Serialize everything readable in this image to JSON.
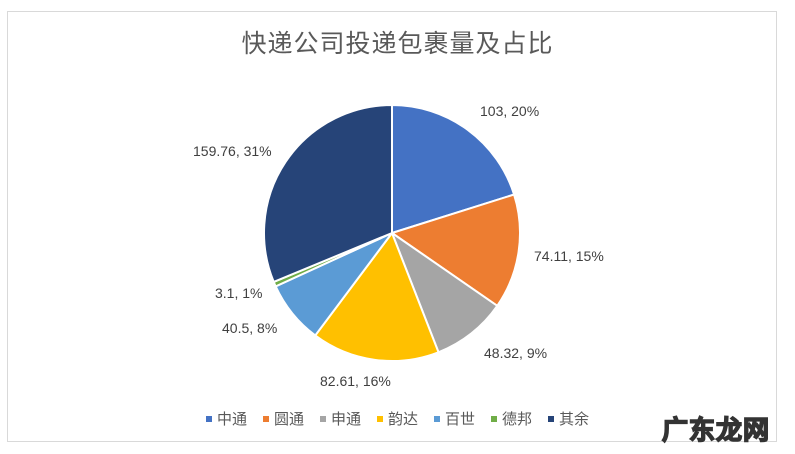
{
  "chart_data": {
    "type": "pie",
    "title": "快递公司投递包裹量及占比",
    "categories": [
      "中通",
      "圆通",
      "申通",
      "韵达",
      "百世",
      "德邦",
      "其余"
    ],
    "values": [
      103,
      74.11,
      48.32,
      82.61,
      40.5,
      3.1,
      159.76
    ],
    "percentages": [
      20,
      15,
      9,
      16,
      8,
      1,
      31
    ],
    "colors": [
      "#4472C4",
      "#ED7D31",
      "#A5A5A5",
      "#FFC000",
      "#5B9BD5",
      "#70AD47",
      "#264478"
    ],
    "data_labels": [
      "103, 20%",
      "74.11, 15%",
      "48.32, 9%",
      "82.61, 16%",
      "40.5, 8%",
      "3.1, 1%",
      "159.76, 31%"
    ],
    "legend_position": "bottom",
    "start_angle_deg": 0,
    "direction": "clockwise"
  },
  "watermark": "广东龙网"
}
